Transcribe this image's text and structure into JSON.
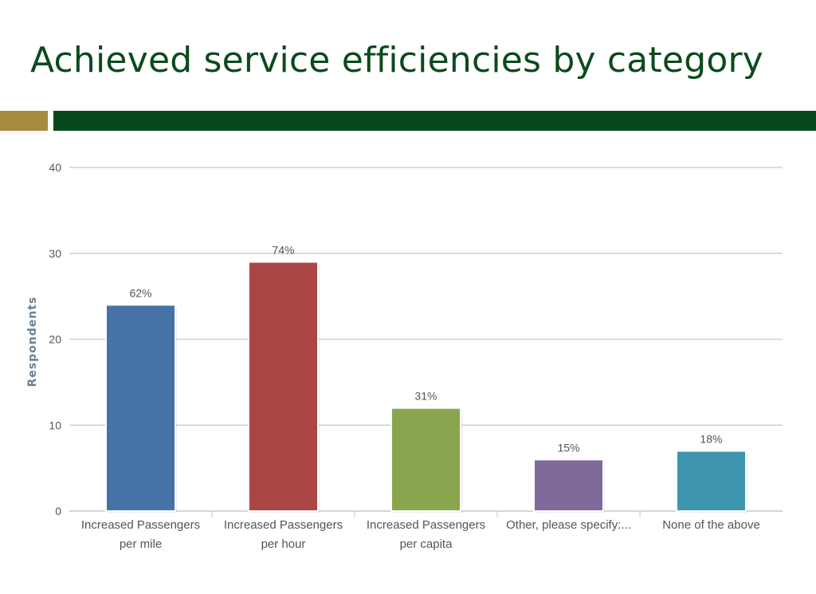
{
  "slide": {
    "title": "Achieved service efficiencies by category"
  },
  "colors": {
    "title": "#0b4a1d",
    "accent_gold": "#a88a3e",
    "accent_green": "#064a1b",
    "gridline": "#d0d0d0"
  },
  "chart_data": {
    "type": "bar",
    "ylabel": "Respondents",
    "ylim": [
      0,
      40
    ],
    "yticks": [
      0,
      10,
      20,
      30,
      40
    ],
    "grid": true,
    "categories": [
      [
        "Increased Passengers",
        "per mile"
      ],
      [
        "Increased Passengers",
        "per hour"
      ],
      [
        "Increased Passengers",
        "per capita"
      ],
      [
        "Other, please specify:..."
      ],
      [
        "None of the above"
      ]
    ],
    "values": [
      24,
      29,
      12,
      6,
      7
    ],
    "data_labels": [
      "62%",
      "74%",
      "31%",
      "15%",
      "18%"
    ],
    "bar_colors": [
      "#4572a7",
      "#aa4643",
      "#89a54e",
      "#80699b",
      "#3d96ae"
    ]
  }
}
